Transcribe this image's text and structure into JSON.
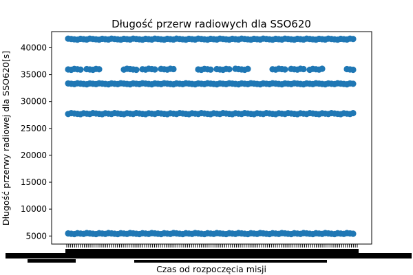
{
  "chart_data": {
    "type": "scatter",
    "title": "Długość przerw radiowych dla SSO620",
    "xlabel": "Czas od rozpoczęcia misji",
    "ylabel": "Długość przerwy radiowej dla SSO620[s]",
    "ylim": [
      3500,
      43000
    ],
    "yticks": [
      5000,
      10000,
      15000,
      20000,
      25000,
      30000,
      35000,
      40000
    ],
    "grid": false,
    "legend": "none",
    "x_tick_labels_legible": false,
    "marker": "circle",
    "color": "#1f77b4",
    "series": [
      {
        "bands": [
          {
            "y": 41600,
            "pattern": "continuous"
          },
          {
            "y": 36000,
            "pattern": "gapped"
          },
          {
            "y": 33300,
            "pattern": "continuous"
          },
          {
            "y": 27750,
            "pattern": "continuous"
          },
          {
            "y": 5450,
            "pattern": "continuous"
          }
        ]
      }
    ]
  }
}
